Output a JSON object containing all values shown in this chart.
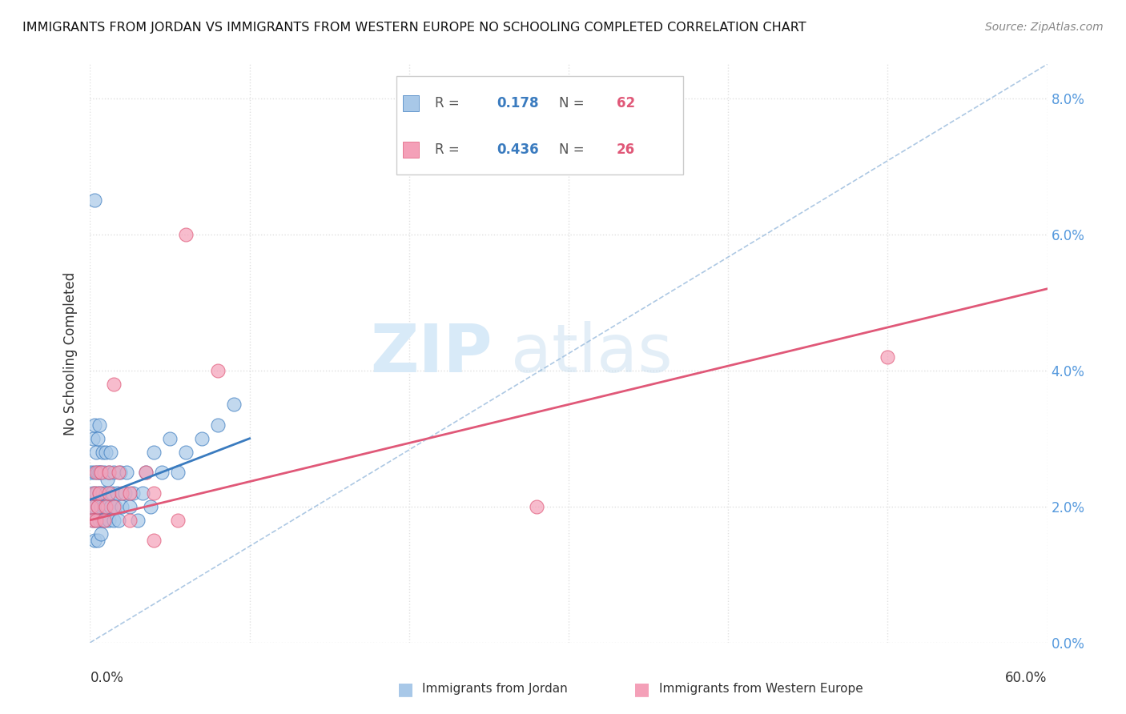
{
  "title": "IMMIGRANTS FROM JORDAN VS IMMIGRANTS FROM WESTERN EUROPE NO SCHOOLING COMPLETED CORRELATION CHART",
  "source": "Source: ZipAtlas.com",
  "ylabel_label": "No Schooling Completed",
  "xlim": [
    0,
    0.6
  ],
  "ylim": [
    0,
    0.085
  ],
  "legend_blue_r": "0.178",
  "legend_blue_n": "62",
  "legend_pink_r": "0.436",
  "legend_pink_n": "26",
  "blue_color": "#a8c8e8",
  "pink_color": "#f4a0b8",
  "blue_line_color": "#3a7bbf",
  "pink_line_color": "#e05878",
  "right_tick_color": "#5599dd",
  "grid_color": "#e0e0e0",
  "diag_line_color": "#99bbdd",
  "blue_scatter_x": [
    0.001,
    0.001,
    0.002,
    0.002,
    0.002,
    0.003,
    0.003,
    0.003,
    0.003,
    0.004,
    0.004,
    0.004,
    0.005,
    0.005,
    0.005,
    0.005,
    0.006,
    0.006,
    0.006,
    0.006,
    0.007,
    0.007,
    0.007,
    0.008,
    0.008,
    0.008,
    0.009,
    0.009,
    0.01,
    0.01,
    0.01,
    0.011,
    0.011,
    0.012,
    0.012,
    0.013,
    0.013,
    0.014,
    0.015,
    0.015,
    0.016,
    0.017,
    0.018,
    0.019,
    0.02,
    0.022,
    0.023,
    0.025,
    0.027,
    0.03,
    0.033,
    0.035,
    0.038,
    0.04,
    0.045,
    0.05,
    0.055,
    0.06,
    0.07,
    0.08,
    0.003,
    0.09
  ],
  "blue_scatter_y": [
    0.02,
    0.025,
    0.018,
    0.022,
    0.03,
    0.015,
    0.02,
    0.025,
    0.032,
    0.018,
    0.022,
    0.028,
    0.015,
    0.02,
    0.025,
    0.03,
    0.018,
    0.022,
    0.025,
    0.032,
    0.016,
    0.02,
    0.025,
    0.018,
    0.022,
    0.028,
    0.02,
    0.025,
    0.018,
    0.022,
    0.028,
    0.02,
    0.024,
    0.018,
    0.025,
    0.02,
    0.028,
    0.022,
    0.018,
    0.025,
    0.02,
    0.022,
    0.018,
    0.025,
    0.02,
    0.022,
    0.025,
    0.02,
    0.022,
    0.018,
    0.022,
    0.025,
    0.02,
    0.028,
    0.025,
    0.03,
    0.025,
    0.028,
    0.03,
    0.032,
    0.065,
    0.035
  ],
  "pink_scatter_x": [
    0.001,
    0.002,
    0.003,
    0.004,
    0.004,
    0.005,
    0.006,
    0.007,
    0.009,
    0.01,
    0.012,
    0.012,
    0.015,
    0.015,
    0.018,
    0.02,
    0.025,
    0.025,
    0.035,
    0.04,
    0.04,
    0.055,
    0.06,
    0.08,
    0.28,
    0.5
  ],
  "pink_scatter_y": [
    0.02,
    0.018,
    0.022,
    0.018,
    0.025,
    0.02,
    0.022,
    0.025,
    0.018,
    0.02,
    0.022,
    0.025,
    0.02,
    0.038,
    0.025,
    0.022,
    0.018,
    0.022,
    0.025,
    0.022,
    0.015,
    0.018,
    0.06,
    0.04,
    0.02,
    0.042
  ],
  "blue_trend_x0": 0.0,
  "blue_trend_x1": 0.1,
  "blue_trend_y0": 0.021,
  "blue_trend_y1": 0.03,
  "pink_trend_x0": 0.0,
  "pink_trend_x1": 0.6,
  "pink_trend_y0": 0.018,
  "pink_trend_y1": 0.052
}
